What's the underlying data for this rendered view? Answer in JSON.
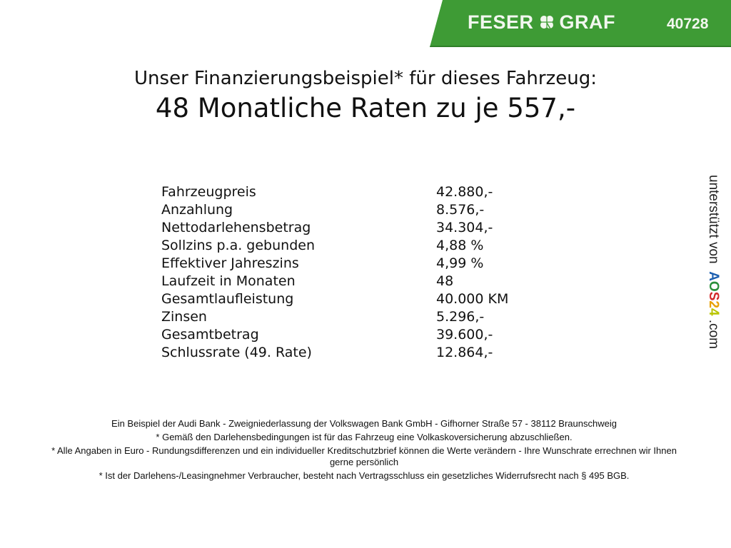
{
  "header": {
    "brand_left": "FESER",
    "brand_right": "GRAF",
    "brand_icon": "clover-icon",
    "code": "40728",
    "brand_color": "#3e9b35"
  },
  "title": {
    "line1": "Unser Finanzierungsbeispiel* für dieses Fahrzeug:",
    "line2": "48 Monatliche Raten zu je 557,-"
  },
  "rows": [
    {
      "label": "Fahrzeugpreis",
      "value": "42.880,-"
    },
    {
      "label": "Anzahlung",
      "value": "8.576,-"
    },
    {
      "label": "Nettodarlehensbetrag",
      "value": "34.304,-"
    },
    {
      "label": "Sollzins p.a. gebunden",
      "value": "4,88 %"
    },
    {
      "label": "Effektiver Jahreszins",
      "value": "4,99 %"
    },
    {
      "label": "Laufzeit in Monaten",
      "value": "48"
    },
    {
      "label": "Gesamtlaufleistung",
      "value": "40.000 KM"
    },
    {
      "label": "Zinsen",
      "value": "5.296,-"
    },
    {
      "label": "Gesamtbetrag",
      "value": "39.600,-"
    },
    {
      "label": "Schlussrate (49. Rate)",
      "value": "12.864,-"
    }
  ],
  "footer": [
    "Ein Beispiel der Audi Bank - Zweigniederlassung der Volkswagen Bank GmbH - Gifhorner Straße 57 - 38112 Braunschweig",
    "* Gemäß den Darlehensbedingungen ist für das Fahrzeug eine Volkaskoversicherung abzuschließen.",
    "* Alle Angaben in Euro - Rundungsdifferenzen und ein individueller Kreditschutzbrief können die Werte verändern - Ihre Wunschrate errechnen wir Ihnen gerne persönlich",
    "* Ist der Darlehens-/Leasingnehmer Verbraucher, besteht nach Vertragsschluss ein gesetzliches Widerrufsrecht nach § 495 BGB."
  ],
  "side": {
    "text": "unterstützt von",
    "logo_a": "A",
    "logo_o": "O",
    "logo_s": "S",
    "logo_2": "2",
    "logo_4": "4",
    "suffix": ".com"
  }
}
